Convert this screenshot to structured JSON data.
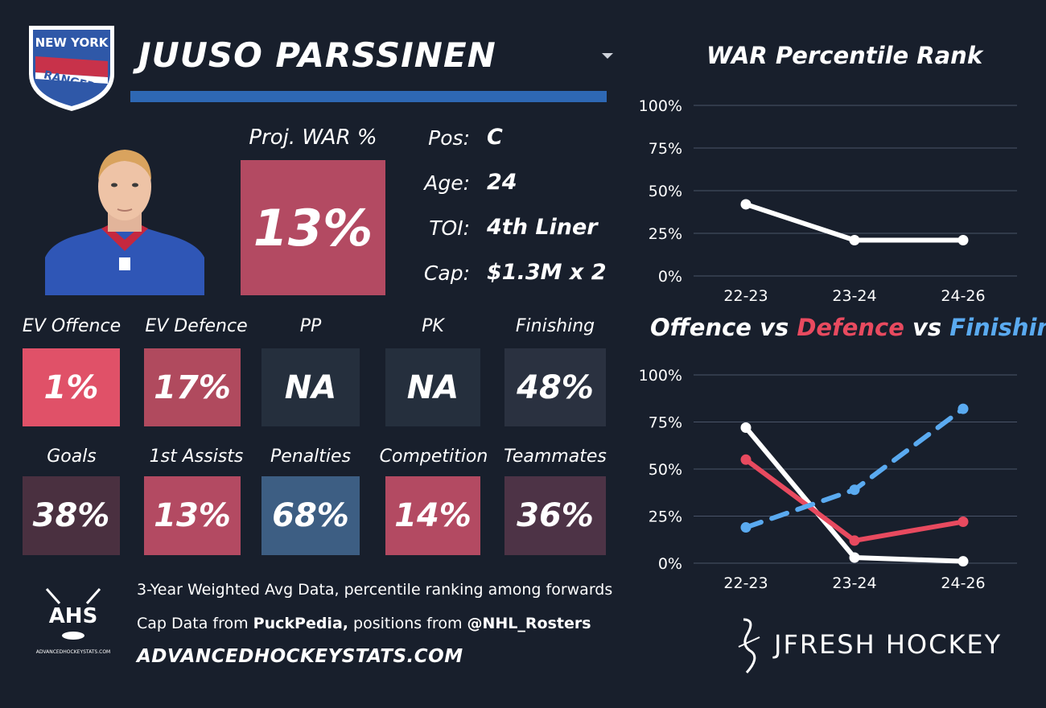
{
  "player": {
    "name": "JUUSO PARSSINEN",
    "team_logo_text": [
      "NEW YORK",
      "RANGERS"
    ],
    "proj_war_label": "Proj. WAR %",
    "proj_war_value": "13%",
    "info": [
      {
        "label": "Pos:",
        "value": "C"
      },
      {
        "label": "Age:",
        "value": "24"
      },
      {
        "label": "TOI:",
        "value": "4th Liner"
      },
      {
        "label": "Cap:",
        "value": "$1.3M x 2"
      }
    ]
  },
  "stats": [
    {
      "label": "EV Offence",
      "value": "1%",
      "color": "#e05168"
    },
    {
      "label": "EV Defence",
      "value": "17%",
      "color": "#b04a5e"
    },
    {
      "label": "PP",
      "value": "NA",
      "color": "#252f3d"
    },
    {
      "label": "PK",
      "value": "NA",
      "color": "#252f3d"
    },
    {
      "label": "Finishing",
      "value": "48%",
      "color": "#2a3140"
    },
    {
      "label": "Goals",
      "value": "38%",
      "color": "#4a3040"
    },
    {
      "label": "1st Assists",
      "value": "13%",
      "color": "#b34a62"
    },
    {
      "label": "Penalties",
      "value": "68%",
      "color": "#3d5e83"
    },
    {
      "label": "Competition",
      "value": "14%",
      "color": "#b34a62"
    },
    {
      "label": "Teammates",
      "value": "36%",
      "color": "#4d3346"
    }
  ],
  "notes": {
    "line1": "3-Year Weighted Avg Data, percentile ranking among forwards",
    "line2_prefix": "Cap Data from ",
    "line2_bold1": "PuckPedia,",
    "line2_mid": " positions from ",
    "line2_bold2": "@NHL_Rosters",
    "site": "ADVANCEDHOCKEYSTATS.COM",
    "ahs_logo": "AHS",
    "ahs_logo_sub": "ADVANCEDHOCKEYSTATS.COM",
    "brand": "JFRESH HOCKEY"
  },
  "colors": {
    "background": "#181f2c",
    "offence": "#ffffff",
    "defence": "#e84a5f",
    "finishing": "#5aaaf0",
    "name_bar": "#2e68b4"
  },
  "chart_data": [
    {
      "type": "line",
      "title": "WAR Percentile Rank",
      "categories": [
        "22-23",
        "23-24",
        "24-26"
      ],
      "series": [
        {
          "values": [
            42,
            21,
            21
          ]
        }
      ],
      "ylim": [
        0,
        100
      ],
      "yticks": [
        "0%",
        "25%",
        "50%",
        "75%",
        "100%"
      ],
      "grid": true
    },
    {
      "type": "line",
      "title_parts": [
        "Offence",
        "vs",
        "Defence",
        "vs",
        "Finishing"
      ],
      "categories": [
        "22-23",
        "23-24",
        "24-26"
      ],
      "series": [
        {
          "name": "Offence",
          "values": [
            72,
            3,
            1
          ]
        },
        {
          "name": "Defence",
          "values": [
            55,
            12,
            22
          ]
        },
        {
          "name": "Finishing",
          "values": [
            19,
            39,
            82
          ]
        }
      ],
      "ylim": [
        0,
        100
      ],
      "yticks": [
        "0%",
        "25%",
        "50%",
        "75%",
        "100%"
      ],
      "grid": true
    }
  ]
}
